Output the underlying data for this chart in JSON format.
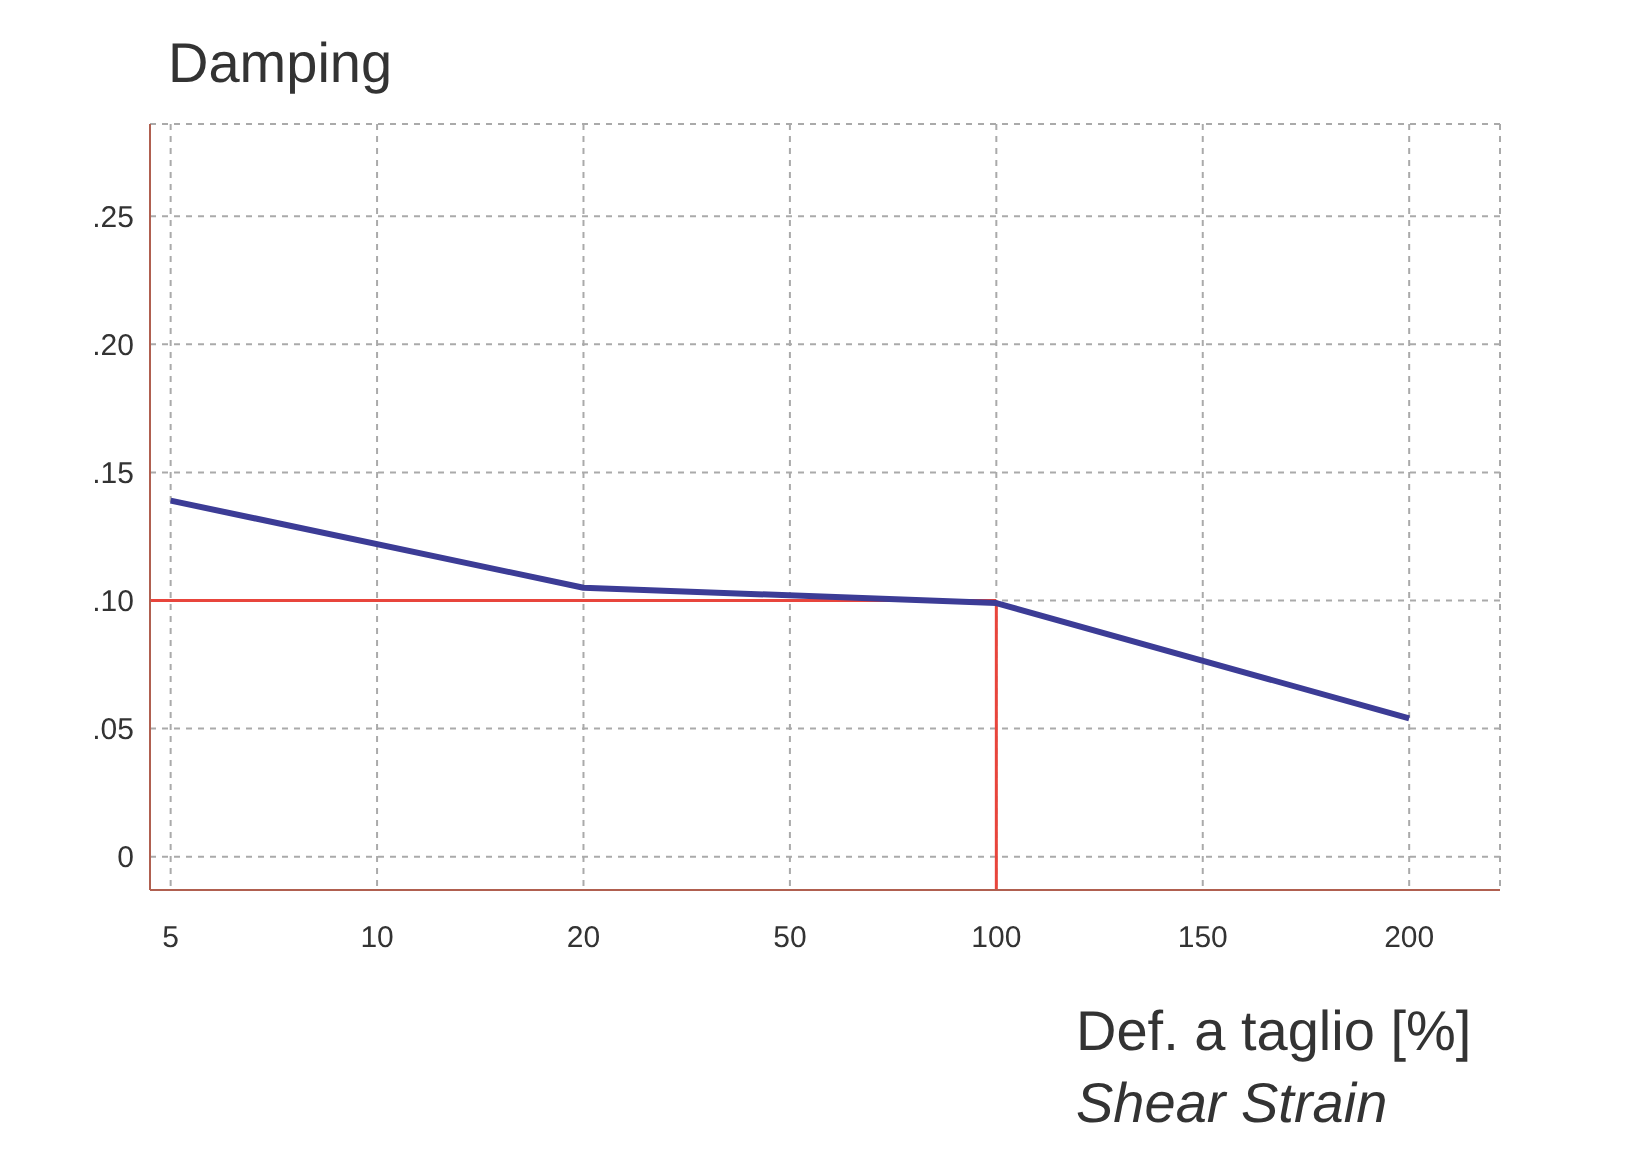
{
  "chart_data": {
    "type": "line",
    "title": "Damping",
    "xlabel": "Def. a taglio [%]",
    "annotations": [
      "Shear Strain"
    ],
    "categories": [
      "5",
      "10",
      "20",
      "50",
      "100",
      "150",
      "200"
    ],
    "series": [
      {
        "color": "#3c3c96",
        "values": [
          0.139,
          null,
          0.105,
          null,
          0.099,
          null,
          0.054
        ]
      }
    ],
    "ylim": [
      -0.013,
      0.286
    ],
    "yticks": [
      {
        "value": 0,
        "label": "0"
      },
      {
        "value": 0.05,
        "label": ".05"
      },
      {
        "value": 0.1,
        "label": ".10"
      },
      {
        "value": 0.15,
        "label": ".15"
      },
      {
        "value": 0.2,
        "label": ".20"
      },
      {
        "value": 0.25,
        "label": ".25"
      }
    ],
    "ref_lines": [
      {
        "axis": "y",
        "value": 0.1,
        "color": "#e8453c"
      },
      {
        "axis": "x",
        "value": "100",
        "color": "#e8453c"
      }
    ],
    "grid": true,
    "marker": "none",
    "line_style": "solid"
  }
}
